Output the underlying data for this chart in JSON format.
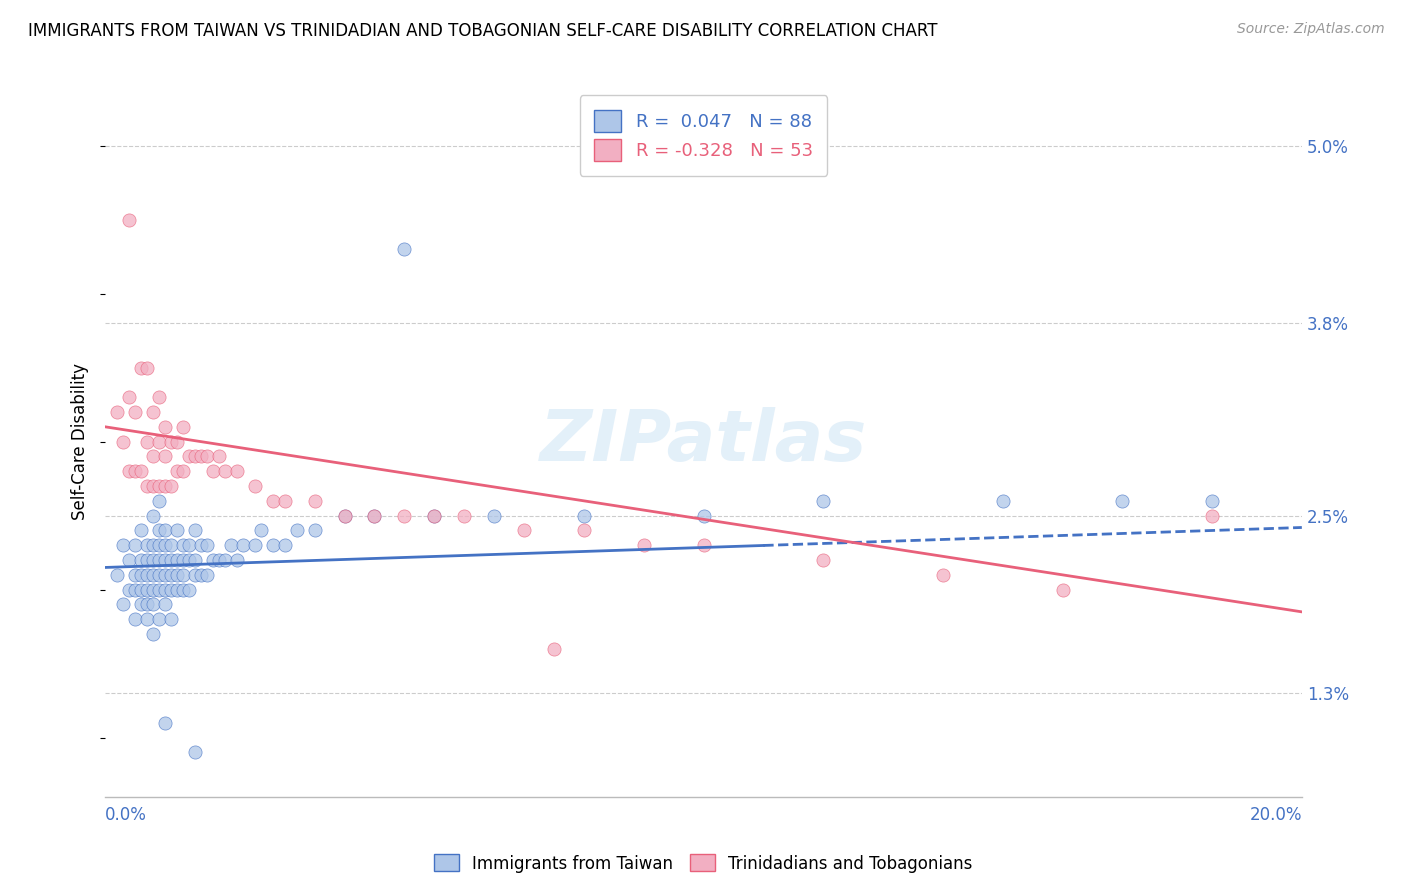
{
  "title": "IMMIGRANTS FROM TAIWAN VS TRINIDADIAN AND TOBAGONIAN SELF-CARE DISABILITY CORRELATION CHART",
  "source": "Source: ZipAtlas.com",
  "ylabel": "Self-Care Disability",
  "yticks": [
    1.3,
    2.5,
    3.8,
    5.0
  ],
  "ytick_labels": [
    "1.3%",
    "2.5%",
    "3.8%",
    "5.0%"
  ],
  "xmin": 0.0,
  "xmax": 20.0,
  "ymin": 0.6,
  "ymax": 5.4,
  "legend_r1": "R =  0.047   N = 88",
  "legend_r2": "R = -0.328   N = 53",
  "color_taiwan": "#aec6e8",
  "color_tnt": "#f2afc2",
  "line_color_taiwan": "#4472c4",
  "line_color_tnt": "#e8607a",
  "watermark": "ZIPatlas",
  "taiwan_x": [
    0.2,
    0.3,
    0.3,
    0.4,
    0.4,
    0.5,
    0.5,
    0.5,
    0.5,
    0.6,
    0.6,
    0.6,
    0.6,
    0.6,
    0.7,
    0.7,
    0.7,
    0.7,
    0.7,
    0.7,
    0.8,
    0.8,
    0.8,
    0.8,
    0.8,
    0.8,
    0.8,
    0.9,
    0.9,
    0.9,
    0.9,
    0.9,
    0.9,
    0.9,
    1.0,
    1.0,
    1.0,
    1.0,
    1.0,
    1.0,
    1.1,
    1.1,
    1.1,
    1.1,
    1.1,
    1.2,
    1.2,
    1.2,
    1.2,
    1.3,
    1.3,
    1.3,
    1.3,
    1.4,
    1.4,
    1.4,
    1.5,
    1.5,
    1.5,
    1.6,
    1.6,
    1.7,
    1.7,
    1.8,
    1.9,
    2.0,
    2.1,
    2.2,
    2.3,
    2.5,
    2.6,
    2.8,
    3.0,
    3.2,
    3.5,
    4.0,
    4.5,
    5.0,
    5.5,
    6.5,
    8.0,
    10.0,
    12.0,
    15.0,
    17.0,
    18.5,
    1.0,
    1.5
  ],
  "taiwan_y": [
    2.1,
    1.9,
    2.3,
    2.0,
    2.2,
    1.8,
    2.0,
    2.1,
    2.3,
    1.9,
    2.0,
    2.1,
    2.2,
    2.4,
    1.8,
    1.9,
    2.0,
    2.1,
    2.2,
    2.3,
    1.7,
    1.9,
    2.0,
    2.1,
    2.2,
    2.3,
    2.5,
    1.8,
    2.0,
    2.1,
    2.2,
    2.3,
    2.4,
    2.6,
    1.9,
    2.0,
    2.1,
    2.2,
    2.3,
    2.4,
    1.8,
    2.0,
    2.1,
    2.2,
    2.3,
    2.0,
    2.1,
    2.2,
    2.4,
    2.0,
    2.1,
    2.2,
    2.3,
    2.0,
    2.2,
    2.3,
    2.1,
    2.2,
    2.4,
    2.1,
    2.3,
    2.1,
    2.3,
    2.2,
    2.2,
    2.2,
    2.3,
    2.2,
    2.3,
    2.3,
    2.4,
    2.3,
    2.3,
    2.4,
    2.4,
    2.5,
    2.5,
    4.3,
    2.5,
    2.5,
    2.5,
    2.5,
    2.6,
    2.6,
    2.6,
    2.6,
    1.1,
    0.9
  ],
  "tnt_x": [
    0.2,
    0.3,
    0.4,
    0.4,
    0.4,
    0.5,
    0.5,
    0.6,
    0.6,
    0.7,
    0.7,
    0.7,
    0.8,
    0.8,
    0.8,
    0.9,
    0.9,
    0.9,
    1.0,
    1.0,
    1.0,
    1.1,
    1.1,
    1.2,
    1.2,
    1.3,
    1.3,
    1.4,
    1.5,
    1.6,
    1.7,
    1.8,
    1.9,
    2.0,
    2.2,
    2.5,
    2.8,
    3.0,
    3.5,
    4.0,
    4.5,
    5.0,
    5.5,
    6.0,
    7.0,
    8.0,
    9.0,
    10.0,
    12.0,
    14.0,
    16.0,
    18.5,
    7.5
  ],
  "tnt_y": [
    3.2,
    3.0,
    2.8,
    3.3,
    4.5,
    2.8,
    3.2,
    2.8,
    3.5,
    2.7,
    3.0,
    3.5,
    2.7,
    2.9,
    3.2,
    2.7,
    3.0,
    3.3,
    2.7,
    2.9,
    3.1,
    2.7,
    3.0,
    2.8,
    3.0,
    2.8,
    3.1,
    2.9,
    2.9,
    2.9,
    2.9,
    2.8,
    2.9,
    2.8,
    2.8,
    2.7,
    2.6,
    2.6,
    2.6,
    2.5,
    2.5,
    2.5,
    2.5,
    2.5,
    2.4,
    2.4,
    2.3,
    2.3,
    2.2,
    2.1,
    2.0,
    2.5,
    1.6
  ],
  "tw_line_x0": 0.0,
  "tw_line_x1": 20.0,
  "tw_line_y0": 2.15,
  "tw_line_y1": 2.42,
  "tw_line_solid_end": 11.0,
  "tnt_line_x0": 0.0,
  "tnt_line_x1": 20.0,
  "tnt_line_y0": 3.1,
  "tnt_line_y1": 1.85
}
